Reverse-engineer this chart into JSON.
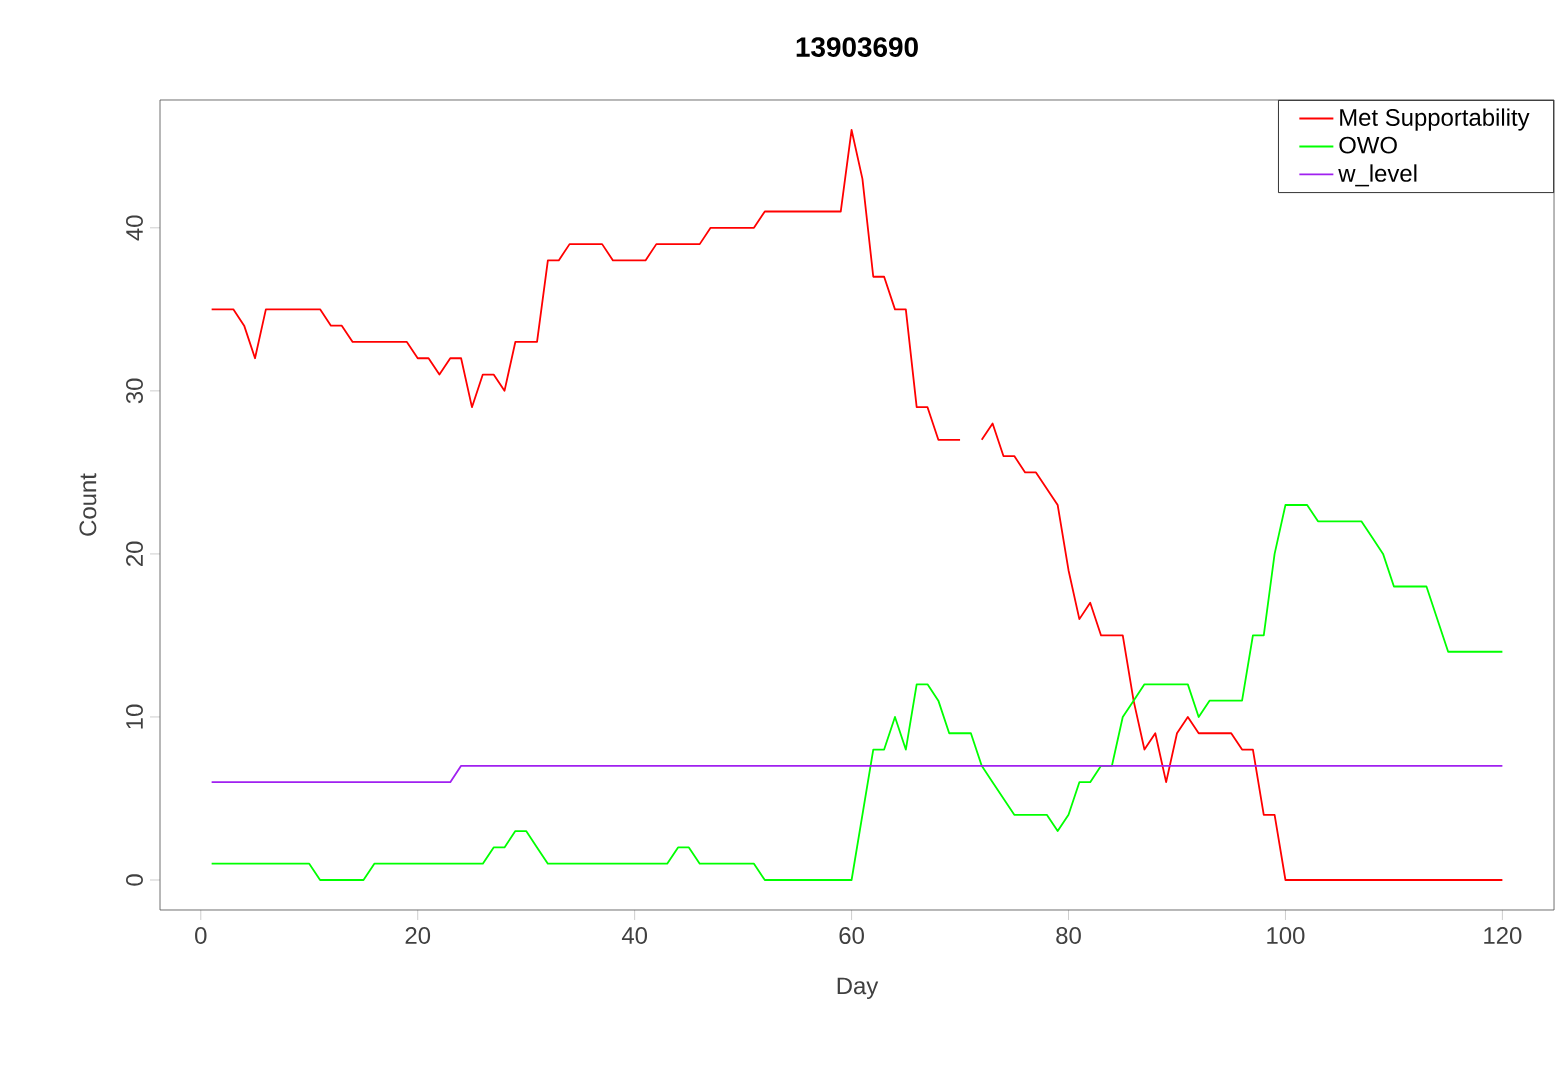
{
  "chart_data": {
    "type": "line",
    "title": "13903690",
    "xlabel": "Day",
    "ylabel": "Count",
    "x": [
      1,
      2,
      3,
      4,
      5,
      6,
      7,
      8,
      9,
      10,
      11,
      12,
      13,
      14,
      15,
      16,
      17,
      18,
      19,
      20,
      21,
      22,
      23,
      24,
      25,
      26,
      27,
      28,
      29,
      30,
      31,
      32,
      33,
      34,
      35,
      36,
      37,
      38,
      39,
      40,
      41,
      42,
      43,
      44,
      45,
      46,
      47,
      48,
      49,
      50,
      51,
      52,
      53,
      54,
      55,
      56,
      57,
      58,
      59,
      60,
      61,
      62,
      63,
      64,
      65,
      66,
      67,
      68,
      69,
      70,
      71,
      72,
      73,
      74,
      75,
      76,
      77,
      78,
      79,
      80,
      81,
      82,
      83,
      84,
      85,
      86,
      87,
      88,
      89,
      90,
      91,
      92,
      93,
      94,
      95,
      96,
      97,
      98,
      99,
      100,
      101,
      102,
      103,
      104,
      105,
      106,
      107,
      108,
      109,
      110,
      111,
      112,
      113,
      114,
      115,
      116,
      117,
      118,
      119,
      120
    ],
    "series": [
      {
        "name": "Met Supportability",
        "color": "#ff0000",
        "values": [
          35,
          35,
          35,
          34,
          32,
          35,
          35,
          35,
          35,
          35,
          35,
          34,
          34,
          33,
          33,
          33,
          33,
          33,
          33,
          32,
          32,
          31,
          32,
          32,
          29,
          31,
          31,
          30,
          33,
          33,
          33,
          38,
          38,
          39,
          39,
          39,
          39,
          38,
          38,
          38,
          38,
          39,
          39,
          39,
          39,
          39,
          40,
          40,
          40,
          40,
          40,
          41,
          41,
          41,
          41,
          41,
          41,
          41,
          41,
          46,
          43,
          37,
          37,
          35,
          35,
          29,
          29,
          27,
          27,
          27,
          null,
          27,
          28,
          26,
          26,
          25,
          25,
          24,
          23,
          19,
          16,
          17,
          15,
          15,
          15,
          11,
          8,
          9,
          6,
          9,
          10,
          9,
          9,
          9,
          9,
          8,
          8,
          4,
          4,
          0,
          0,
          0,
          0,
          0,
          0,
          0,
          0,
          0,
          0,
          0,
          0,
          0,
          0,
          0,
          0,
          0,
          0,
          0,
          0,
          0
        ]
      },
      {
        "name": "OWO",
        "color": "#00ff00",
        "values": [
          1,
          1,
          1,
          1,
          1,
          1,
          1,
          1,
          1,
          1,
          0,
          0,
          0,
          0,
          0,
          1,
          1,
          1,
          1,
          1,
          1,
          1,
          1,
          1,
          1,
          1,
          2,
          2,
          3,
          3,
          2,
          1,
          1,
          1,
          1,
          1,
          1,
          1,
          1,
          1,
          1,
          1,
          1,
          2,
          2,
          1,
          1,
          1,
          1,
          1,
          1,
          0,
          0,
          0,
          0,
          0,
          0,
          0,
          0,
          0,
          4,
          8,
          8,
          10,
          8,
          12,
          12,
          11,
          9,
          9,
          9,
          7,
          6,
          5,
          4,
          4,
          4,
          4,
          3,
          4,
          6,
          6,
          7,
          7,
          10,
          11,
          12,
          12,
          12,
          12,
          12,
          10,
          11,
          11,
          11,
          11,
          15,
          15,
          20,
          23,
          23,
          23,
          22,
          22,
          22,
          22,
          22,
          21,
          20,
          18,
          18,
          18,
          18,
          16,
          14,
          14,
          14,
          14,
          14,
          14
        ]
      },
      {
        "name": "w_level",
        "color": "#a020f0",
        "values": [
          6,
          6,
          6,
          6,
          6,
          6,
          6,
          6,
          6,
          6,
          6,
          6,
          6,
          6,
          6,
          6,
          6,
          6,
          6,
          6,
          6,
          6,
          6,
          7,
          7,
          7,
          7,
          7,
          7,
          7,
          7,
          7,
          7,
          7,
          7,
          7,
          7,
          7,
          7,
          7,
          7,
          7,
          7,
          7,
          7,
          7,
          7,
          7,
          7,
          7,
          7,
          7,
          7,
          7,
          7,
          7,
          7,
          7,
          7,
          7,
          7,
          7,
          7,
          7,
          7,
          7,
          7,
          7,
          7,
          7,
          7,
          7,
          7,
          7,
          7,
          7,
          7,
          7,
          7,
          7,
          7,
          7,
          7,
          7,
          7,
          7,
          7,
          7,
          7,
          7,
          7,
          7,
          7,
          7,
          7,
          7,
          7,
          7,
          7,
          7,
          7,
          7,
          7,
          7,
          7,
          7,
          7,
          7,
          7,
          7,
          7,
          7,
          7,
          7,
          7,
          7,
          7,
          7,
          7,
          7
        ]
      }
    ],
    "xlim": [
      -3.76,
      124.76
    ],
    "ylim": [
      -1.84,
      47.84
    ],
    "xticks": [
      0,
      20,
      40,
      60,
      80,
      100,
      120
    ],
    "yticks": [
      0,
      10,
      20,
      30,
      40
    ],
    "grid": false,
    "legend": "top right",
    "marker": "none",
    "line_style": "solid"
  }
}
